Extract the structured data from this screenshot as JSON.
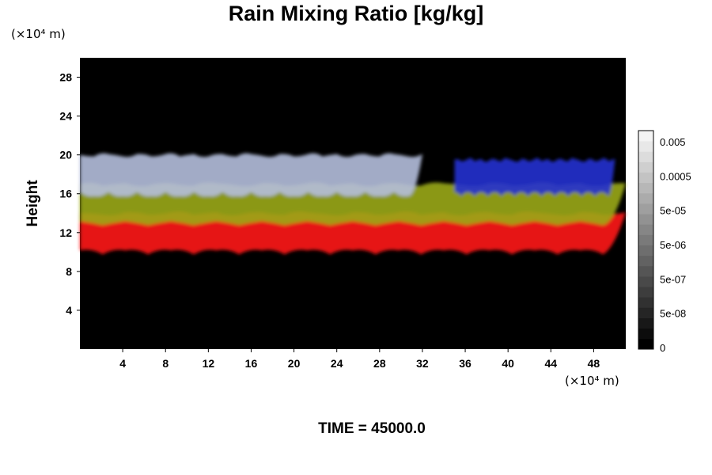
{
  "chart_data": {
    "type": "heatmap",
    "title": "Rain Mixing Ratio [kg/kg]",
    "xlabel": "",
    "ylabel": "Height",
    "x_unit": "(×10⁴ m)",
    "y_unit": "(×10⁴ m)",
    "xlim": [
      0,
      51
    ],
    "ylim": [
      0,
      30
    ],
    "x_ticks": [
      4,
      8,
      12,
      16,
      20,
      24,
      28,
      32,
      36,
      40,
      44,
      48
    ],
    "y_ticks": [
      4,
      8,
      12,
      16,
      20,
      24,
      28
    ],
    "background": "#000000",
    "colorbar": {
      "labels": [
        "0.005",
        "0.0005",
        "5e-05",
        "5e-06",
        "5e-07",
        "5e-08",
        "0"
      ],
      "n_levels": 21,
      "color_low": "#000000",
      "color_high": "#f4f4f4"
    },
    "layers": [
      {
        "color": "#ff1a1a",
        "y_range": [
          10,
          14
        ],
        "x_range": [
          0,
          51
        ]
      },
      {
        "color": "#9aa818",
        "y_range": [
          13,
          17
        ],
        "x_range": [
          0,
          51
        ]
      },
      {
        "color": "#b4bedc",
        "y_range": [
          16,
          20
        ],
        "x_range": [
          0,
          32
        ]
      },
      {
        "color": "#2430d0",
        "y_range": [
          16,
          19.5
        ],
        "x_range": [
          35,
          50
        ]
      }
    ]
  },
  "footer": "TIME = 45000.0"
}
